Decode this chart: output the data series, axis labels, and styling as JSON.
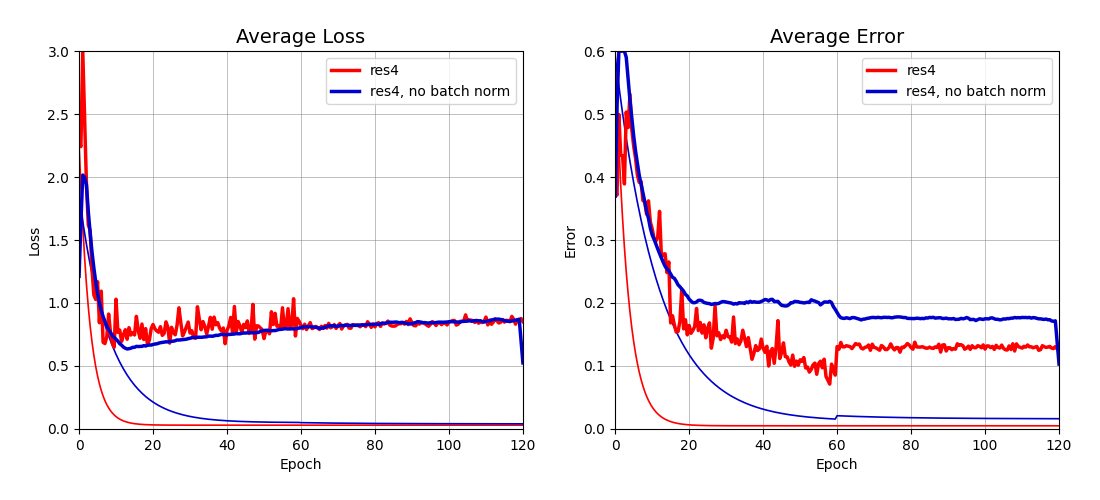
{
  "title_loss": "Average Loss",
  "title_error": "Average Error",
  "xlabel": "Epoch",
  "ylabel_loss": "Loss",
  "ylabel_error": "Error",
  "xlim": [
    0,
    120
  ],
  "ylim_loss": [
    0,
    3.0
  ],
  "ylim_error": [
    0,
    0.6
  ],
  "yticks_loss": [
    0.0,
    0.5,
    1.0,
    1.5,
    2.0,
    2.5,
    3.0
  ],
  "yticks_error": [
    0.0,
    0.1,
    0.2,
    0.3,
    0.4,
    0.5,
    0.6
  ],
  "xticks": [
    0,
    20,
    40,
    60,
    80,
    100,
    120
  ],
  "legend_labels": [
    "res4",
    "res4, no batch norm"
  ],
  "color_res4": "#ff0000",
  "color_no_bn": "#0000cc",
  "linewidth_thick": 2.5,
  "linewidth_thin": 1.2,
  "seed": 42
}
